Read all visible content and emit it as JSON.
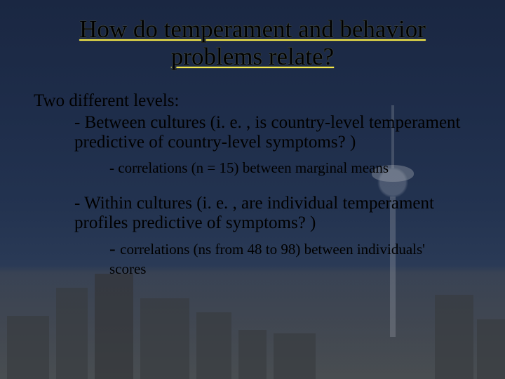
{
  "colors": {
    "underline": "#f5e848",
    "text": "#000000",
    "bg_top": "#1a2742",
    "bg_bottom": "#4a5258"
  },
  "typography": {
    "family": "Times New Roman",
    "title_size_pt": 35,
    "body_size_pt": 25,
    "sub_size_pt": 21
  },
  "title": "How do temperament and behavior problems relate?",
  "intro": "Two different levels:",
  "level1": "- Between cultures (i. e. , is country-level temperament predictive of country-level symptoms? )",
  "sub1": "- correlations (n = 15) between marginal means",
  "level2": "- Within cultures (i. e. , are individual temperament profiles predictive of symptoms? )",
  "sub2_rest": "correlations (ns  from 48 to 98) between individuals' scores"
}
